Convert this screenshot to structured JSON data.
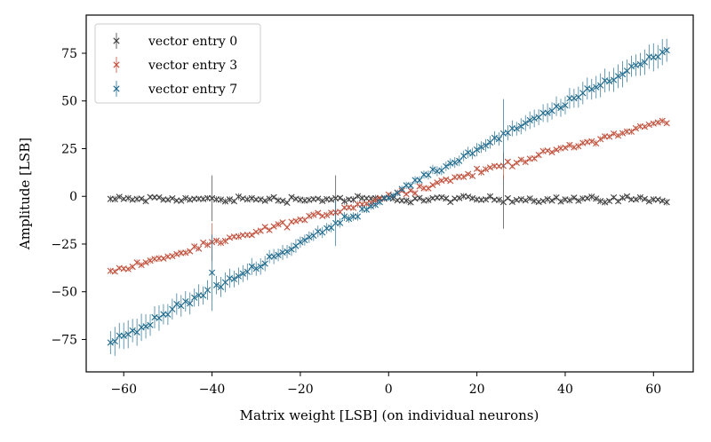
{
  "chart_data": {
    "type": "scatter",
    "xlabel": "Matrix weight [LSB] (on individual neurons)",
    "ylabel": "Amplitude [LSB]",
    "xlim": [
      -68.5,
      69
    ],
    "ylim": [
      -92,
      95
    ],
    "xticks": [
      -60,
      -40,
      -20,
      0,
      20,
      40,
      60
    ],
    "yticks": [
      -75,
      -50,
      -25,
      0,
      25,
      50,
      75
    ],
    "xtick_labels": [
      "−60",
      "−40",
      "−20",
      "0",
      "20",
      "40",
      "60"
    ],
    "ytick_labels": [
      "−75",
      "−50",
      "−25",
      "0",
      "25",
      "50",
      "75"
    ],
    "grid": false,
    "legend_position": "top-left",
    "marker": "x",
    "x_range": [
      -63,
      63
    ],
    "series": [
      {
        "name": "vector entry 0",
        "color": "#3d3d3d",
        "trend": {
          "slope": 0.0,
          "intercept": -1.5
        },
        "typical_error": 1.5,
        "outliers": [
          {
            "x": -40,
            "y": -1,
            "err": 12
          },
          {
            "x": -12,
            "y": -1,
            "err": 12
          },
          {
            "x": 26,
            "y": -3,
            "err": 14
          }
        ]
      },
      {
        "name": "vector entry 3",
        "color": "#c0503c",
        "trend": {
          "slope": 0.63,
          "intercept": 0
        },
        "typical_error": 1.5,
        "outliers": [
          {
            "x": -40,
            "y": -24,
            "err": 10
          },
          {
            "x": 26,
            "y": 16,
            "err": 7
          }
        ]
      },
      {
        "name": "vector entry 7",
        "color": "#1f6a8c",
        "trend": {
          "slope": 1.22,
          "intercept": 0
        },
        "typical_error_range": [
          1.5,
          8
        ],
        "outliers": [
          {
            "x": -40,
            "y": -40,
            "err": 20
          },
          {
            "x": -12,
            "y": -14,
            "err": 12
          },
          {
            "x": 26,
            "y": 33,
            "err": 18
          }
        ]
      }
    ]
  }
}
